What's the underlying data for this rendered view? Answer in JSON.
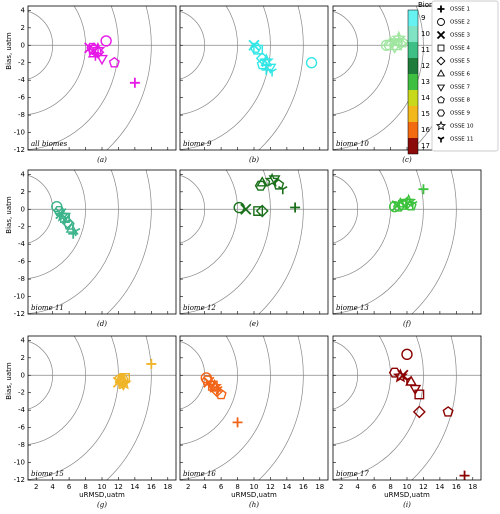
{
  "legend": {
    "title": "Biomes",
    "biomes": [
      9,
      10,
      11,
      12,
      13,
      14,
      15,
      16,
      17
    ],
    "biome_colors": [
      "#66f2f0",
      "#7fe3c4",
      "#3dbf85",
      "#1f7d3c",
      "#3fbf3f",
      "#c8d81a",
      "#f2b71a",
      "#f26b10",
      "#8b0a0a"
    ],
    "entries": [
      "OSSE 1",
      "OSSE 2",
      "OSSE 3",
      "OSSE 4",
      "OSSE 5",
      "OSSE 6",
      "OSSE 7",
      "OSSE 8",
      "OSSE 9",
      "OSSE 10",
      "OSSE 11"
    ]
  },
  "chart_data": [
    {
      "type": "scatter",
      "title": "all biomes",
      "caption": "(a)",
      "color": "#e619e6",
      "ylabel": "Bias, uatm",
      "xlim": [
        1,
        19
      ],
      "ylim": [
        -12,
        4.5
      ],
      "xticks": [
        2,
        4,
        6,
        8,
        10,
        12,
        14,
        16,
        18
      ],
      "yticks": [
        4,
        2,
        0,
        -2,
        -4,
        -6,
        -8,
        -10,
        -12
      ],
      "circles": [
        4,
        8,
        12,
        16
      ],
      "x": [
        14,
        10.5,
        8.5,
        9,
        9.5,
        9,
        10,
        11.5,
        8.8,
        9.5,
        9.2
      ],
      "values": [
        -4.3,
        0.5,
        -0.3,
        -0.5,
        -0.8,
        -1,
        -1.5,
        -2,
        -0.3,
        -0.5,
        -1.2
      ]
    },
    {
      "type": "scatter",
      "title": "biome 9",
      "caption": "(b)",
      "color": "#33e6e6",
      "xlim": [
        1,
        19
      ],
      "ylim": [
        -12,
        4.5
      ],
      "xticks": [
        2,
        4,
        6,
        8,
        10,
        12,
        14,
        16,
        18
      ],
      "yticks": [
        4,
        2,
        0,
        -2,
        -4,
        -6,
        -8,
        -10,
        -12
      ],
      "circles": [
        4,
        8,
        12,
        16
      ],
      "x": [
        11.5,
        17,
        10,
        10.5,
        11,
        11.5,
        12,
        11,
        10.2,
        11.5,
        12.2
      ],
      "values": [
        -2.8,
        -2,
        0,
        -0.5,
        -1.5,
        -2,
        -2.5,
        -2.2,
        -0.3,
        -1.8,
        -3
      ]
    },
    {
      "type": "scatter",
      "title": "biome 10",
      "caption": "(c)",
      "color": "#a0e6a0",
      "xlim": [
        1,
        19
      ],
      "ylim": [
        -12,
        4.5
      ],
      "xticks": [
        2,
        4,
        6,
        8,
        10,
        12,
        14,
        16,
        18
      ],
      "yticks": [
        4,
        2,
        0,
        -2,
        -4,
        -6,
        -8,
        -10,
        -12
      ],
      "circles": [
        4,
        8,
        12,
        16
      ],
      "x": [
        9,
        7.5,
        8.5,
        8.8,
        9.2,
        8,
        8.5,
        9.5,
        7.8,
        9,
        8.7
      ],
      "values": [
        0.7,
        0,
        0.3,
        0,
        0.2,
        0.3,
        -0.2,
        0.3,
        0,
        0.8,
        0.5
      ]
    },
    {
      "type": "scatter",
      "title": "biome 11",
      "caption": "(d)",
      "color": "#3cb38a",
      "ylabel": "Bias, uatm",
      "xlim": [
        1,
        19
      ],
      "ylim": [
        -12,
        4.5
      ],
      "xticks": [
        2,
        4,
        6,
        8,
        10,
        12,
        14,
        16,
        18
      ],
      "yticks": [
        4,
        2,
        0,
        -2,
        -4,
        -6,
        -8,
        -10,
        -12
      ],
      "circles": [
        4,
        8,
        12,
        16
      ],
      "x": [
        6.5,
        4.5,
        5,
        5.5,
        5.8,
        6.3,
        5.5,
        6,
        4.8,
        5.2,
        6.8
      ],
      "values": [
        -2.8,
        0.3,
        -0.5,
        -1,
        -1.5,
        -2.3,
        -0.8,
        -1.8,
        -0.2,
        -0.7,
        -2.5
      ]
    },
    {
      "type": "scatter",
      "title": "biome 12",
      "caption": "(e)",
      "color": "#1a701a",
      "xlim": [
        1,
        19
      ],
      "ylim": [
        -12,
        4.5
      ],
      "xticks": [
        2,
        4,
        6,
        8,
        10,
        12,
        14,
        16,
        18
      ],
      "yticks": [
        4,
        2,
        0,
        -2,
        -4,
        -6,
        -8,
        -10,
        -12
      ],
      "circles": [
        4,
        8,
        12,
        16
      ],
      "x": [
        15,
        8.2,
        9,
        10.5,
        11,
        11,
        12.5,
        13,
        10.8,
        12.2,
        13.5
      ],
      "values": [
        0.2,
        0.2,
        0,
        -0.2,
        -0.2,
        3,
        3.5,
        2.8,
        2.7,
        3.3,
        2.3
      ]
    },
    {
      "type": "scatter",
      "title": "biome 13",
      "caption": "(f)",
      "color": "#3cc23c",
      "xlim": [
        1,
        19
      ],
      "ylim": [
        -12,
        4.5
      ],
      "xticks": [
        2,
        4,
        6,
        8,
        10,
        12,
        14,
        16,
        18
      ],
      "yticks": [
        4,
        2,
        0,
        -2,
        -4,
        -6,
        -8,
        -10,
        -12
      ],
      "circles": [
        4,
        8,
        12,
        16
      ],
      "x": [
        12,
        8.5,
        8.8,
        9.5,
        10,
        9.2,
        9.8,
        10.5,
        9,
        10.2,
        10.7
      ],
      "values": [
        2.3,
        0.3,
        0.4,
        0.5,
        0.7,
        0.6,
        0.8,
        0.4,
        0.3,
        0.9,
        0.6
      ]
    },
    {
      "type": "scatter",
      "title": "biome 15",
      "caption": "(g)",
      "color": "#f0b428",
      "ylabel": "Bias, uatm",
      "xlabel": "uRMSD,uatm",
      "xlim": [
        1,
        19
      ],
      "ylim": [
        -12,
        4.5
      ],
      "xticks": [
        2,
        4,
        6,
        8,
        10,
        12,
        14,
        16,
        18
      ],
      "yticks": [
        4,
        2,
        0,
        -2,
        -4,
        -6,
        -8,
        -10,
        -12
      ],
      "circles": [
        4,
        8,
        12,
        16
      ],
      "x": [
        16,
        12.5,
        12,
        12.8,
        12.5,
        12.3,
        12.6,
        12.2,
        12.4,
        12.7,
        12.1
      ],
      "values": [
        1.3,
        -0.5,
        -0.8,
        -0.3,
        -0.8,
        -0.6,
        -1,
        -0.4,
        -0.7,
        -0.9,
        -1
      ]
    },
    {
      "type": "scatter",
      "title": "biome 16",
      "caption": "(h)",
      "color": "#f26418",
      "xlabel": "uRMSD,uatm",
      "xlim": [
        1,
        19
      ],
      "ylim": [
        -12,
        4.5
      ],
      "xticks": [
        2,
        4,
        6,
        8,
        10,
        12,
        14,
        16,
        18
      ],
      "yticks": [
        4,
        2,
        0,
        -2,
        -4,
        -6,
        -8,
        -10,
        -12
      ],
      "circles": [
        4,
        8,
        12,
        16
      ],
      "x": [
        8,
        4.2,
        4.5,
        5,
        5.5,
        5.3,
        4.8,
        6,
        4.3,
        5.2,
        5.6
      ],
      "values": [
        -5.4,
        -0.3,
        -0.8,
        -1.2,
        -1.8,
        -1.5,
        -1,
        -2.2,
        -0.6,
        -1.3,
        -1.6
      ]
    },
    {
      "type": "scatter",
      "title": "biome 17",
      "caption": "(i)",
      "color": "#8b0000",
      "xlabel": "uRMSD,uatm",
      "xlim": [
        1,
        19
      ],
      "ylim": [
        -12,
        4.5
      ],
      "xticks": [
        2,
        4,
        6,
        8,
        10,
        12,
        14,
        16,
        18
      ],
      "yticks": [
        4,
        2,
        0,
        -2,
        -4,
        -6,
        -8,
        -10,
        -12
      ],
      "circles": [
        4,
        8,
        12,
        16
      ],
      "x": [
        17,
        10,
        9.5,
        11.5,
        11.5,
        10.5,
        11,
        15,
        8.5,
        9.2,
        10
      ],
      "values": [
        -11.5,
        2.4,
        0,
        -2.2,
        -4.2,
        -0.8,
        -1.5,
        -4.2,
        0.3,
        -0.1,
        -0.5
      ]
    }
  ]
}
